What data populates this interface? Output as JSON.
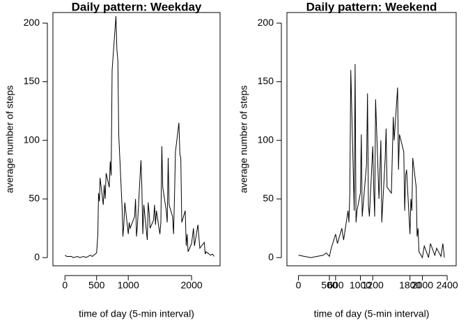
{
  "chart_data": [
    {
      "type": "line",
      "title": "Daily pattern: Weekday",
      "x_label": "time of day (5-min interval)",
      "y_label": "average number of steps",
      "color": "#000000",
      "x": [
        0,
        30,
        100,
        130,
        200,
        230,
        300,
        330,
        400,
        430,
        500,
        520,
        530,
        545,
        555,
        605,
        620,
        635,
        650,
        700,
        715,
        730,
        745,
        805,
        820,
        835,
        850,
        905,
        915,
        930,
        945,
        1000,
        1015,
        1030,
        1100,
        1115,
        1130,
        1145,
        1200,
        1215,
        1230,
        1245,
        1300,
        1315,
        1330,
        1345,
        1400,
        1415,
        1430,
        1445,
        1500,
        1515,
        1530,
        1545,
        1600,
        1615,
        1630,
        1645,
        1700,
        1715,
        1730,
        1745,
        1800,
        1815,
        1830,
        1845,
        1900,
        1915,
        1930,
        1945,
        2000,
        2030,
        2045,
        2100,
        2130,
        2200,
        2215,
        2230,
        2300,
        2330,
        2355
      ],
      "values": [
        2,
        1,
        1,
        0,
        1,
        0,
        1,
        0,
        2,
        1,
        4,
        20,
        55,
        48,
        68,
        45,
        62,
        50,
        72,
        60,
        82,
        70,
        160,
        206,
        178,
        168,
        105,
        40,
        18,
        28,
        47,
        20,
        30,
        25,
        35,
        50,
        18,
        28,
        83,
        60,
        20,
        45,
        15,
        47,
        38,
        25,
        32,
        45,
        28,
        40,
        20,
        30,
        95,
        60,
        40,
        30,
        85,
        45,
        35,
        20,
        50,
        90,
        115,
        88,
        85,
        30,
        40,
        10,
        20,
        5,
        12,
        25,
        10,
        28,
        8,
        13,
        3,
        5,
        2,
        3,
        1
      ],
      "xlim": [
        -190,
        2450
      ],
      "ylim": [
        -7,
        209
      ],
      "xticks": [
        0,
        500,
        1000,
        2000
      ],
      "yticks": [
        0,
        50,
        100,
        150,
        200
      ]
    },
    {
      "type": "line",
      "title": "Daily pattern: Weekend",
      "x_label": "time of day (5-min interval)",
      "y_label": "average number of steps",
      "color": "#000000",
      "x": [
        0,
        100,
        200,
        300,
        400,
        450,
        500,
        530,
        600,
        630,
        700,
        730,
        800,
        815,
        830,
        845,
        900,
        915,
        930,
        945,
        1000,
        1015,
        1030,
        1100,
        1115,
        1130,
        1145,
        1200,
        1215,
        1230,
        1245,
        1300,
        1330,
        1345,
        1400,
        1415,
        1430,
        1500,
        1530,
        1545,
        1600,
        1615,
        1630,
        1700,
        1715,
        1730,
        1745,
        1800,
        1815,
        1830,
        1845,
        1900,
        1915,
        1930,
        1945,
        2000,
        2030,
        2100,
        2130,
        2200,
        2230,
        2300,
        2330,
        2355
      ],
      "values": [
        2,
        1,
        0,
        1,
        2,
        4,
        1,
        8,
        20,
        12,
        25,
        15,
        40,
        30,
        55,
        160,
        40,
        165,
        30,
        40,
        55,
        105,
        35,
        80,
        140,
        45,
        35,
        95,
        60,
        35,
        135,
        50,
        100,
        30,
        85,
        110,
        60,
        55,
        120,
        100,
        145,
        75,
        105,
        90,
        40,
        70,
        75,
        20,
        50,
        40,
        85,
        60,
        18,
        25,
        5,
        0,
        10,
        0,
        12,
        2,
        8,
        1,
        12,
        0
      ],
      "xlim": [
        -185,
        2545
      ],
      "ylim": [
        -7,
        209
      ],
      "xticks": [
        0,
        500,
        600,
        1000,
        1200,
        1800,
        2000,
        2400
      ],
      "yticks": [
        0,
        50,
        100,
        150,
        200
      ]
    }
  ]
}
